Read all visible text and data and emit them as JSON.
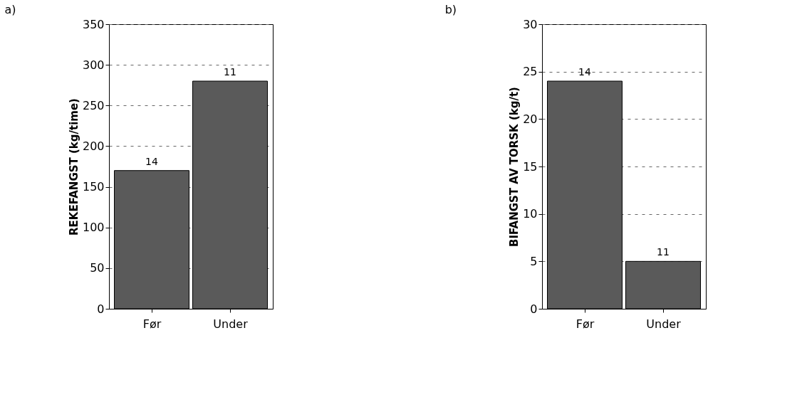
{
  "chart_data": [
    {
      "type": "bar",
      "title": "a)",
      "ylabel": "REKEFANGST (kg/time)",
      "categories": [
        "Før",
        "Under"
      ],
      "values": [
        170,
        280
      ],
      "color": "#5a5a5a",
      "annotations": [
        {
          "text": "14",
          "x": "Før",
          "y": 170
        },
        {
          "text": "11",
          "x": "Under",
          "y": 280
        }
      ],
      "ylim": [
        0,
        350
      ],
      "yticks": [
        0,
        50,
        100,
        150,
        200,
        250,
        300,
        350
      ],
      "grid": "y"
    },
    {
      "type": "bar",
      "title": "b)",
      "ylabel": "BIFANGST AV TORSK (kg/t)",
      "categories": [
        "Før",
        "Under"
      ],
      "values": [
        24,
        5
      ],
      "color": "#5a5a5a",
      "annotations": [
        {
          "text": "14",
          "x": "Før",
          "y": 24
        },
        {
          "text": "11",
          "x": "Under",
          "y": 5
        }
      ],
      "ylim": [
        0,
        30
      ],
      "yticks": [
        0,
        5,
        10,
        15,
        20,
        25,
        30
      ],
      "grid": "y"
    }
  ]
}
